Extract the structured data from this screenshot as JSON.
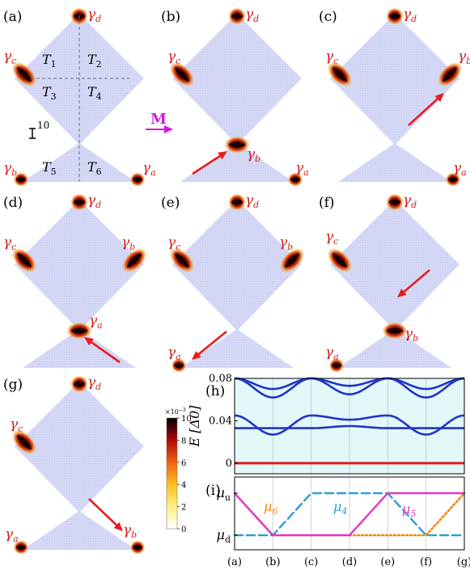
{
  "colors": {
    "lattice": "#d5d9f6",
    "lattice_dot": "#c0c6ee",
    "gamma": "#d11f1f",
    "arrow_red": "#e81b1b",
    "field_arrow": "#d21bd8",
    "band_blue": "#2035c8",
    "panel_bg": "#e3f8f9",
    "zero_line": "#e01b1b",
    "mu6": "#f08a00",
    "mu4": "#2a9fd8",
    "mu5": "#e436c8"
  },
  "panel_labels": [
    "(a)",
    "(b)",
    "(c)",
    "(d)",
    "(e)",
    "(f)",
    "(g)",
    "(h)",
    "(i)"
  ],
  "gamma": {
    "symbol": "γ",
    "a": "a",
    "b": "b",
    "c": "c",
    "d": "d"
  },
  "t_labels": {
    "symbol": "T",
    "subs": [
      "1",
      "2",
      "3",
      "4",
      "5",
      "6"
    ]
  },
  "scale_bar": "10",
  "field_label": "M",
  "colorbar": {
    "exponent": "×10",
    "exponent_power": "−3",
    "ticks": [
      "10",
      "8",
      "6",
      "4",
      "2",
      "0"
    ],
    "max": 10,
    "min": 0
  },
  "chart_data": [
    {
      "type": "line",
      "panel": "(h)",
      "ylabel": "E [Δ0]",
      "ylim": [
        -0.01,
        0.08
      ],
      "yticks": [
        "0.08",
        "0.04",
        "0"
      ],
      "x": [
        "(a)",
        "(b)",
        "(c)",
        "(d)",
        "(e)",
        "(f)",
        "(g)"
      ],
      "series": [
        {
          "values": [
            0.0,
            0.0,
            0.0,
            0.0,
            0.0,
            0.0,
            0.0
          ]
        },
        {
          "values": [
            0.033,
            0.033,
            0.033,
            0.035,
            0.033,
            0.033,
            0.033
          ]
        },
        {
          "values": [
            0.045,
            0.027,
            0.045,
            0.041,
            0.045,
            0.027,
            0.045
          ]
        },
        {
          "values": [
            0.08,
            0.062,
            0.08,
            0.065,
            0.08,
            0.062,
            0.08
          ]
        },
        {
          "values": [
            0.08,
            0.07,
            0.08,
            0.073,
            0.08,
            0.07,
            0.08
          ]
        }
      ]
    },
    {
      "type": "line",
      "panel": "(i)",
      "yticks": [
        "μu",
        "μd"
      ],
      "x": [
        "(a)",
        "(b)",
        "(c)",
        "(d)",
        "(e)",
        "(f)",
        "(g)"
      ],
      "series": [
        {
          "name": "μ6",
          "values": [
            "μu",
            "μd",
            "μd",
            "μd",
            "μd",
            "μd",
            "μu"
          ]
        },
        {
          "name": "μ4",
          "values": [
            "μd",
            "μd",
            "μu",
            "μu",
            "μu",
            "μd",
            "μd"
          ]
        },
        {
          "name": "μ5",
          "values": [
            "μu",
            "μd",
            "μd",
            "μd",
            "μu",
            "μu",
            "μu"
          ]
        }
      ]
    }
  ]
}
